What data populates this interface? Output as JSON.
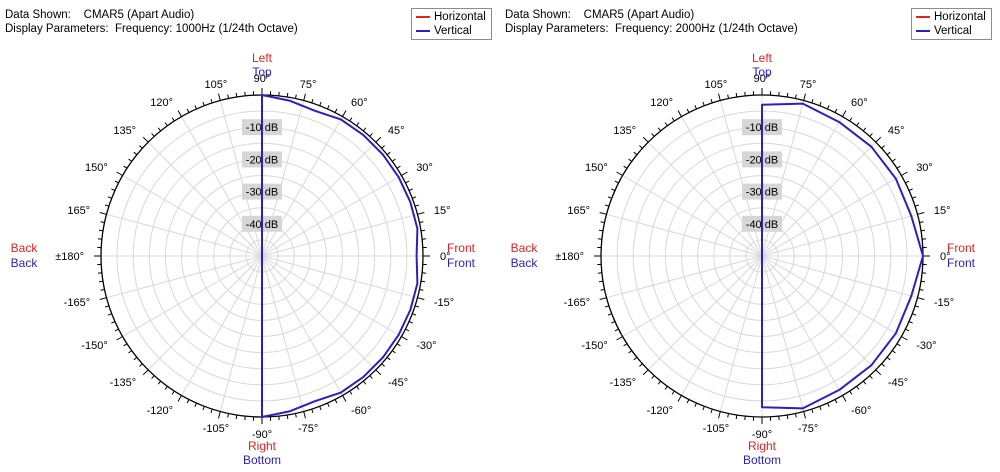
{
  "colors": {
    "horizontal": "#e32222",
    "vertical": "#2a1fbf",
    "grid": "#d8d8d8",
    "axis": "#000000",
    "db_label_bg": "#d6d6d6"
  },
  "legend_labels": {
    "horizontal": "Horizontal",
    "vertical": "Vertical"
  },
  "direction_labels": {
    "top_h": "Left",
    "top_v": "Top",
    "bottom_h": "Right",
    "bottom_v": "Bottom",
    "left_h": "Back",
    "left_v": "Back",
    "right_h": "Front",
    "right_v": "Front"
  },
  "angle_labels": [
    "0°",
    "15°",
    "30°",
    "45°",
    "60°",
    "75°",
    "90°",
    "105°",
    "120°",
    "135°",
    "150°",
    "165°",
    "±180°",
    "-165°",
    "-150°",
    "-135°",
    "-120°",
    "-105°",
    "-90°",
    "-75°",
    "-60°",
    "-45°",
    "-30°",
    "-15°"
  ],
  "panels": [
    {
      "data_shown_label": "Data Shown:",
      "data_shown_value": "CMAR5 (Apart Audio)",
      "display_params_label": "Display Parameters:",
      "display_params_value": "Frequency: 1000Hz (1/24th Octave)",
      "chart_data": {
        "type": "polar-line",
        "title": "",
        "radial_axis": {
          "unit": "dB",
          "range": [
            -50,
            0
          ],
          "ring_labels": [
            "-10 dB",
            "-20 dB",
            "-30 dB",
            "-40 dB"
          ]
        },
        "angle_ticks_deg": [
          0,
          15,
          30,
          45,
          60,
          75,
          90,
          105,
          120,
          135,
          150,
          165,
          180,
          -165,
          -150,
          -135,
          -120,
          -105,
          -90,
          -75,
          -60,
          -45,
          -30,
          -15
        ],
        "series": [
          {
            "name": "Vertical",
            "color": "#2a1fbf",
            "angle_deg": [
              90,
              80,
              70,
              60,
              50,
              40,
              30,
              20,
              10,
              0,
              -10,
              -20,
              -30,
              -40,
              -50,
              -60,
              -70,
              -80,
              -90
            ],
            "level_db": [
              0,
              -1,
              -2,
              -1,
              -1,
              -1,
              -1,
              -1,
              -1,
              -2,
              -1,
              -1,
              -1,
              -1,
              -1,
              -1,
              -2,
              -1,
              0
            ]
          },
          {
            "name": "Horizontal",
            "color": "#e32222",
            "angle_deg": [],
            "level_db": []
          }
        ]
      }
    },
    {
      "data_shown_label": "Data Shown:",
      "data_shown_value": "CMAR5 (Apart Audio)",
      "display_params_label": "Display Parameters:",
      "display_params_value": "Frequency: 2000Hz (1/24th Octave)",
      "chart_data": {
        "type": "polar-line",
        "title": "",
        "radial_axis": {
          "unit": "dB",
          "range": [
            -50,
            0
          ],
          "ring_labels": [
            "-10 dB",
            "-20 dB",
            "-30 dB",
            "-40 dB"
          ]
        },
        "angle_ticks_deg": [
          0,
          15,
          30,
          45,
          60,
          75,
          90,
          105,
          120,
          135,
          150,
          165,
          180,
          -165,
          -150,
          -135,
          -120,
          -105,
          -90,
          -75,
          -60,
          -45,
          -30,
          -15
        ],
        "series": [
          {
            "name": "Vertical",
            "color": "#2a1fbf",
            "angle_deg": [
              90,
              75,
              60,
              45,
              30,
              15,
              0,
              -15,
              -30,
              -45,
              -60,
              -75,
              -90
            ],
            "level_db": [
              -3,
              -1,
              -2,
              -2,
              -2,
              -2,
              0,
              -2,
              -2,
              -2,
              -2,
              -1,
              -3
            ]
          },
          {
            "name": "Horizontal",
            "color": "#e32222",
            "angle_deg": [],
            "level_db": []
          }
        ]
      }
    }
  ]
}
